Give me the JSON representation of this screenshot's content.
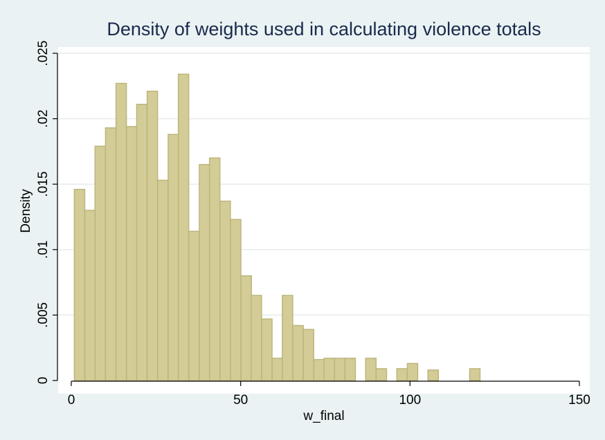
{
  "chart_data": {
    "type": "bar",
    "title": "Density of weights used in calculating violence totals",
    "xlabel": "w_final",
    "ylabel": "Density",
    "xlim": [
      0,
      150
    ],
    "ylim": [
      0,
      0.025
    ],
    "x_ticks": [
      {
        "value": 0,
        "label": "0"
      },
      {
        "value": 50,
        "label": "50"
      },
      {
        "value": 100,
        "label": "100"
      },
      {
        "value": 150,
        "label": "150"
      }
    ],
    "y_ticks": [
      {
        "value": 0,
        "label": "0"
      },
      {
        "value": 0.005,
        "label": ".005"
      },
      {
        "value": 0.01,
        "label": ".01"
      },
      {
        "value": 0.015,
        "label": ".015"
      },
      {
        "value": 0.02,
        "label": ".02"
      },
      {
        "value": 0.025,
        "label": ".025"
      }
    ],
    "grid": true,
    "bin_width": 3.07,
    "bins": [
      {
        "x_start": 0.9,
        "density": 0.0146
      },
      {
        "x_start": 4.0,
        "density": 0.013
      },
      {
        "x_start": 7.0,
        "density": 0.0179
      },
      {
        "x_start": 10.1,
        "density": 0.0193
      },
      {
        "x_start": 13.2,
        "density": 0.0227
      },
      {
        "x_start": 16.3,
        "density": 0.0194
      },
      {
        "x_start": 19.3,
        "density": 0.0211
      },
      {
        "x_start": 22.4,
        "density": 0.0221
      },
      {
        "x_start": 25.5,
        "density": 0.0153
      },
      {
        "x_start": 28.6,
        "density": 0.0188
      },
      {
        "x_start": 31.6,
        "density": 0.0234
      },
      {
        "x_start": 34.7,
        "density": 0.0114
      },
      {
        "x_start": 37.8,
        "density": 0.0165
      },
      {
        "x_start": 40.8,
        "density": 0.017
      },
      {
        "x_start": 43.9,
        "density": 0.0137
      },
      {
        "x_start": 47.0,
        "density": 0.0123
      },
      {
        "x_start": 50.1,
        "density": 0.008
      },
      {
        "x_start": 53.1,
        "density": 0.0065
      },
      {
        "x_start": 56.2,
        "density": 0.0047
      },
      {
        "x_start": 59.3,
        "density": 0.0017
      },
      {
        "x_start": 62.3,
        "density": 0.0065
      },
      {
        "x_start": 65.4,
        "density": 0.0042
      },
      {
        "x_start": 68.5,
        "density": 0.0039
      },
      {
        "x_start": 71.6,
        "density": 0.0016
      },
      {
        "x_start": 74.6,
        "density": 0.0017
      },
      {
        "x_start": 77.7,
        "density": 0.0017
      },
      {
        "x_start": 80.8,
        "density": 0.0017
      },
      {
        "x_start": 86.9,
        "density": 0.0017
      },
      {
        "x_start": 90.0,
        "density": 0.0009
      },
      {
        "x_start": 96.1,
        "density": 0.0009
      },
      {
        "x_start": 99.2,
        "density": 0.0013
      },
      {
        "x_start": 105.3,
        "density": 0.0008
      },
      {
        "x_start": 117.6,
        "density": 0.0009
      }
    ],
    "colors": {
      "bar_fill": "#d4cc96",
      "bar_stroke": "#bcb57c",
      "plot_background": "#ffffff",
      "outer_background": "#eaf2f3",
      "grid": "#e6ecee",
      "title": "#1a2a4c"
    }
  }
}
